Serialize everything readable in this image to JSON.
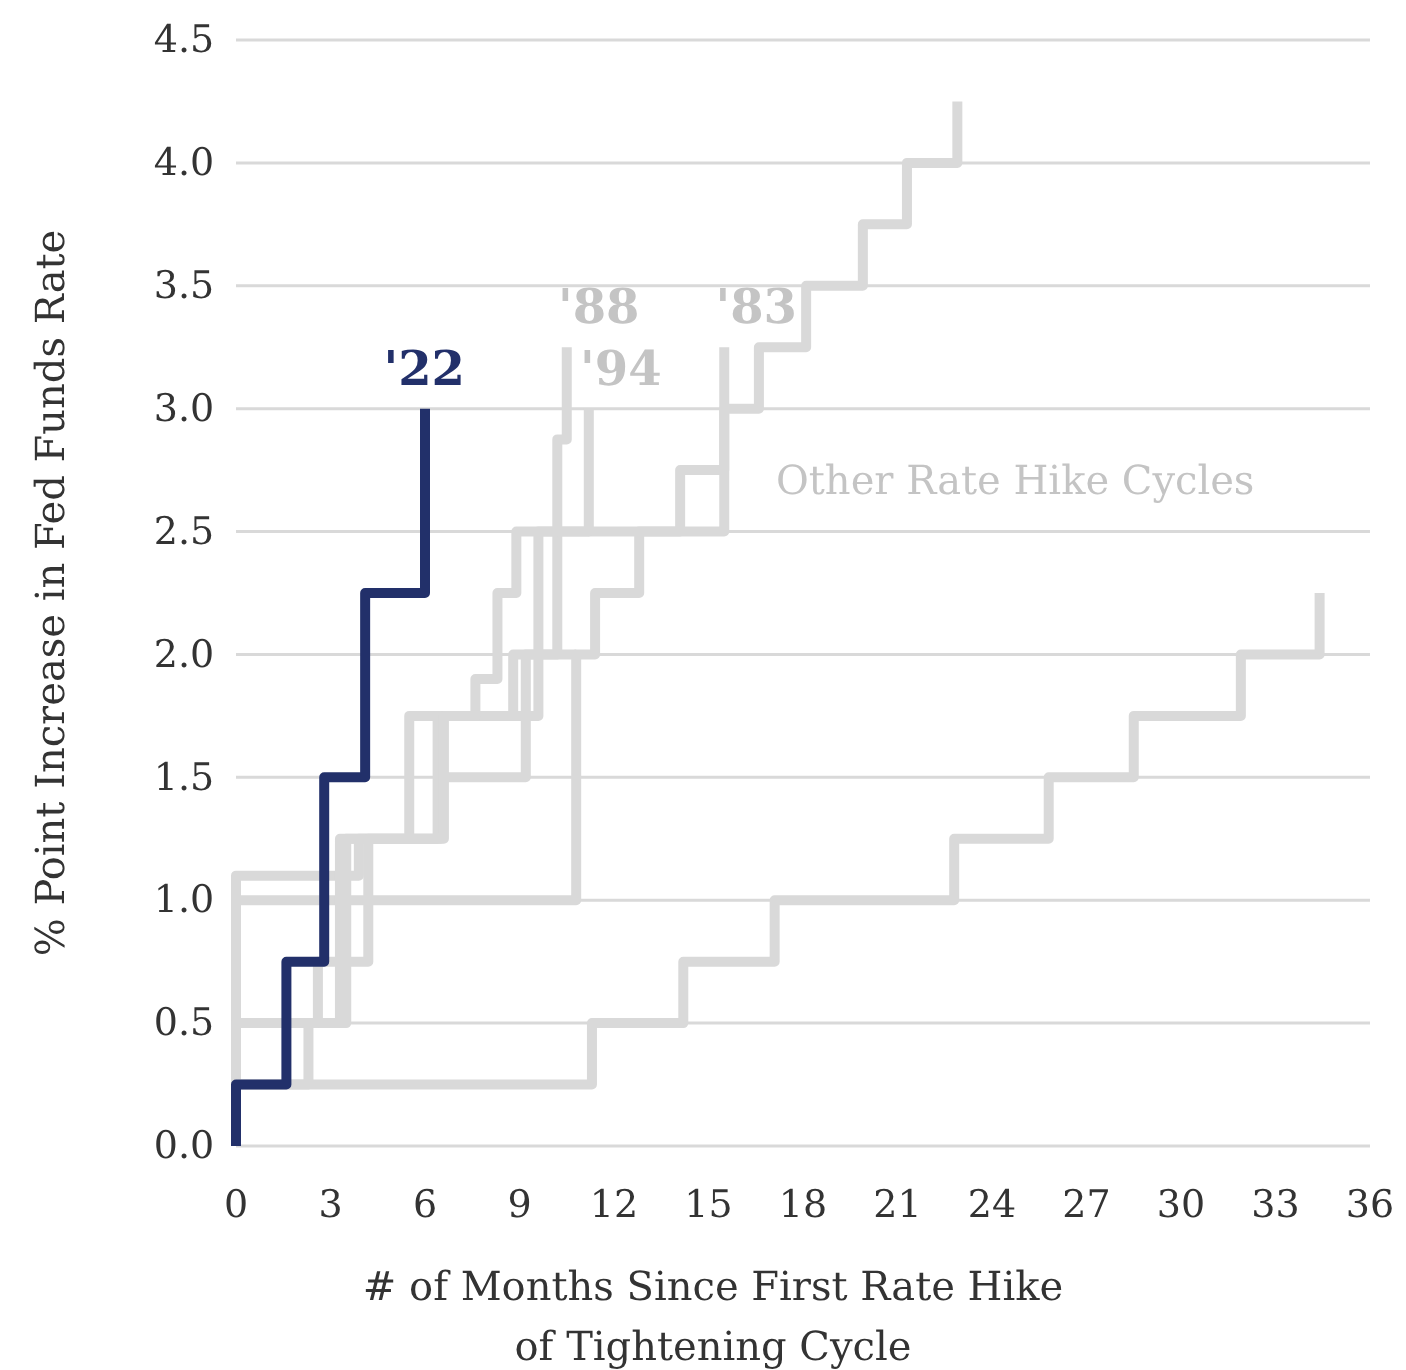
{
  "chart_data": {
    "type": "step",
    "xlabel": "# of Months Since First Rate Hike\nof Tightening Cycle",
    "ylabel": "% Point Increase in Fed Funds Rate",
    "xlim": [
      0,
      36
    ],
    "ylim": [
      0,
      4.5
    ],
    "xticks": [
      0,
      3,
      6,
      9,
      12,
      15,
      18,
      21,
      24,
      27,
      30,
      33,
      36
    ],
    "yticks": [
      {
        "value": 0,
        "label": "0.0"
      },
      {
        "value": 0.5,
        "label": "0.5"
      },
      {
        "value": 1,
        "label": "1.0"
      },
      {
        "value": 1.5,
        "label": "1.5"
      },
      {
        "value": 2,
        "label": "2.0"
      },
      {
        "value": 2.5,
        "label": "2.5"
      },
      {
        "value": 3,
        "label": "3.0"
      },
      {
        "value": 3.5,
        "label": "3.5"
      },
      {
        "value": 4,
        "label": "4.0"
      },
      {
        "value": 4.5,
        "label": "4.5"
      }
    ],
    "grid": "y",
    "marker": "none",
    "line_style": "solid",
    "annotations": [
      "Other Rate Hike Cycles"
    ],
    "series": [
      {
        "color": "#d9d9d9",
        "x": [
          0,
          0,
          11.3,
          14.2,
          17.1,
          22.8,
          25.8,
          28.5,
          31.9,
          34.4
        ],
        "values": [
          0,
          0.25,
          0.5,
          0.75,
          1.0,
          1.25,
          1.5,
          1.75,
          2.0,
          2.25
        ]
      },
      {
        "color": "#d9d9d9",
        "x": [
          0,
          0,
          10.8,
          11.4,
          12.8,
          14.1,
          15.5,
          16.6,
          18.1,
          19.9,
          21.3,
          22.9
        ],
        "values": [
          0,
          1.0,
          2.0,
          2.25,
          2.5,
          2.75,
          3.0,
          3.25,
          3.5,
          3.75,
          4.0,
          4.25
        ]
      },
      {
        "color": "#d9d9d9",
        "x": [
          0,
          0,
          3.9,
          6.5,
          9.2,
          10.8
        ],
        "values": [
          0,
          1.1,
          1.25,
          1.5,
          2.0,
          2.0
        ]
      },
      {
        "name": "'83",
        "color": "#d9d9d9",
        "x": [
          0,
          0,
          3.3,
          5.5,
          8.8,
          10.2,
          15.5
        ],
        "values": [
          0,
          0.5,
          1.25,
          1.75,
          2.0,
          2.5,
          3.25
        ]
      },
      {
        "name": "'94",
        "color": "#d9d9d9",
        "x": [
          0,
          0,
          2.3,
          3.5,
          6.4,
          9.6,
          11.2
        ],
        "values": [
          0,
          0.25,
          0.5,
          1.25,
          1.75,
          2.5,
          3.0
        ]
      },
      {
        "name": "'88",
        "color": "#d9d9d9",
        "x": [
          0,
          0,
          2.6,
          4.2,
          6.6,
          7.6,
          8.3,
          8.9,
          10.2,
          10.5
        ],
        "values": [
          0,
          0.5,
          0.75,
          1.25,
          1.75,
          1.9,
          2.25,
          2.5,
          2.875,
          3.25
        ]
      },
      {
        "name": "'22",
        "color": "#22306a",
        "x": [
          0,
          0,
          1.6,
          2.8,
          4.1,
          6
        ],
        "values": [
          0,
          0.25,
          0.75,
          1.5,
          2.25,
          3.0
        ]
      }
    ]
  }
}
